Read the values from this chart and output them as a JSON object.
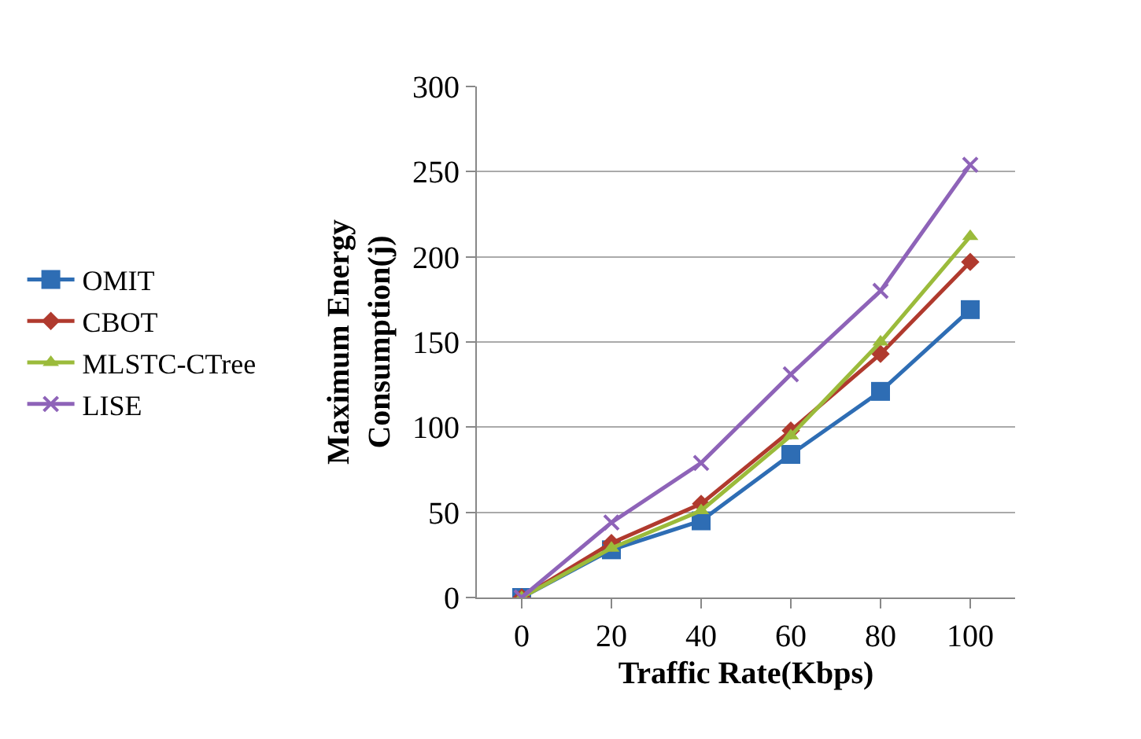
{
  "chart_data": {
    "type": "line",
    "xlabel": "Traffic Rate(Kbps)",
    "ylabel": "Maximum Energy\nConsumption(j)",
    "categories": [
      "0",
      "20",
      "40",
      "60",
      "80",
      "100"
    ],
    "series": [
      {
        "name": "OMIT",
        "color": "#2e6db4",
        "marker": "square",
        "values": [
          0,
          28,
          45,
          84,
          121,
          169
        ]
      },
      {
        "name": "CBOT",
        "color": "#b03a2e",
        "marker": "diamond",
        "values": [
          0,
          32,
          55,
          98,
          143,
          197
        ]
      },
      {
        "name": "MLSTC-CTree",
        "color": "#9bbb3b",
        "marker": "triangle",
        "values": [
          0,
          29,
          51,
          95,
          150,
          212
        ]
      },
      {
        "name": "LISE",
        "color": "#8e63b8",
        "marker": "cross",
        "values": [
          0,
          44,
          79,
          131,
          180,
          254
        ]
      }
    ],
    "ylim": [
      0,
      300
    ],
    "yticks": [
      0,
      50,
      100,
      150,
      200,
      250,
      300
    ],
    "grid": "y",
    "legend": "left"
  }
}
